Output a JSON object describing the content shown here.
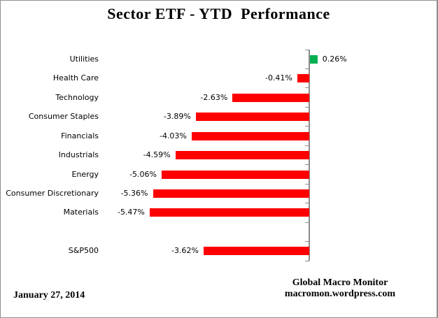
{
  "title": "Sector ETF - YTD  Performance",
  "footer": {
    "date": "January 27, 2014",
    "attribution_line1": "Global Macro Monitor",
    "attribution_line2": "macromon.wordpress.com"
  },
  "colors": {
    "positive_bar": "#00B050",
    "negative_bar": "#FF0000",
    "axis": "#8C8C8C",
    "text": "#000000"
  },
  "chart_data": {
    "type": "bar",
    "orientation": "horizontal",
    "title": "Sector ETF - YTD  Performance",
    "categories": [
      "Utilities",
      "Health Care",
      "Technology",
      "Consumer Staples",
      "Financials",
      "Industrials",
      "Energy",
      "Consumer Discretionary",
      "Materials",
      "",
      "S&P500"
    ],
    "values": [
      0.26,
      -0.41,
      -2.63,
      -3.89,
      -4.03,
      -4.59,
      -5.06,
      -5.36,
      -5.47,
      null,
      -3.62
    ],
    "value_labels": [
      "0.26%",
      "-0.41%",
      "-2.63%",
      "-3.89%",
      "-4.03%",
      "-4.59%",
      "-5.06%",
      "-5.36%",
      "-5.47%",
      "",
      "-3.62%"
    ],
    "unit": "percent",
    "baseline": 0,
    "xlim": [
      -7,
      1
    ],
    "grid": false,
    "legend": false,
    "axis_tick_labels_visible": false
  }
}
